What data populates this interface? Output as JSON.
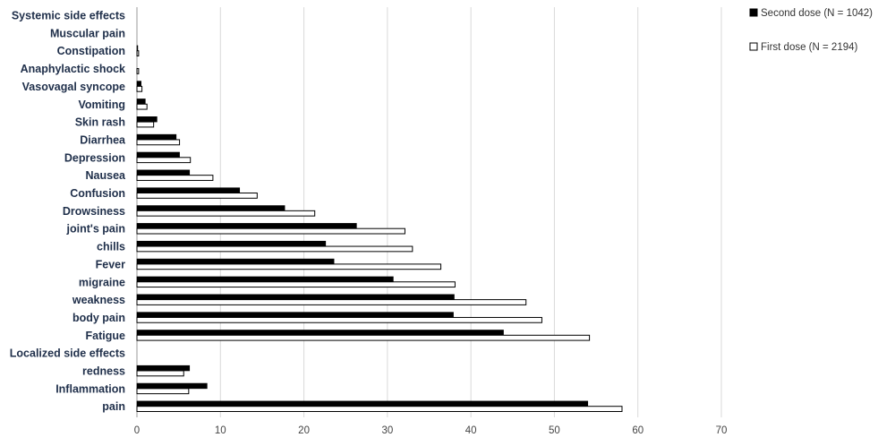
{
  "chart_data": {
    "type": "bar",
    "orientation": "horizontal",
    "categories": [
      "Systemic side effects",
      "Muscular pain",
      "Constipation",
      "Anaphylactic shock",
      "Vasovagal syncope",
      "Vomiting",
      "Skin rash",
      "Diarrhea",
      "Depression",
      "Nausea",
      "Confusion",
      "Drowsiness",
      "joint's pain",
      "chills",
      "Fever",
      "migraine",
      "weakness",
      "body pain",
      "Fatigue",
      "Localized side effects",
      "redness",
      "Inflammation",
      "pain"
    ],
    "series": [
      {
        "name": "Second dose (N = 1042)",
        "color": "#000000",
        "values": [
          null,
          0,
          0.1,
          0,
          0.5,
          1.0,
          2.4,
          4.7,
          5.1,
          6.3,
          12.3,
          17.7,
          26.3,
          22.6,
          23.6,
          30.7,
          38.0,
          37.9,
          43.9,
          null,
          6.3,
          8.4,
          54.0
        ]
      },
      {
        "name": "First dose (N = 2194)",
        "color": "#ffffff",
        "values": [
          null,
          0,
          0.2,
          0.2,
          0.6,
          1.2,
          2.0,
          5.1,
          6.4,
          9.1,
          14.4,
          21.3,
          32.1,
          33.0,
          36.4,
          38.1,
          46.6,
          48.5,
          54.2,
          null,
          5.6,
          6.2,
          58.1
        ]
      }
    ],
    "xlim": [
      0,
      70
    ],
    "xticks": [
      0,
      10,
      20,
      30,
      40,
      50,
      60,
      70
    ],
    "grid": true,
    "legend_position": "top-right"
  }
}
